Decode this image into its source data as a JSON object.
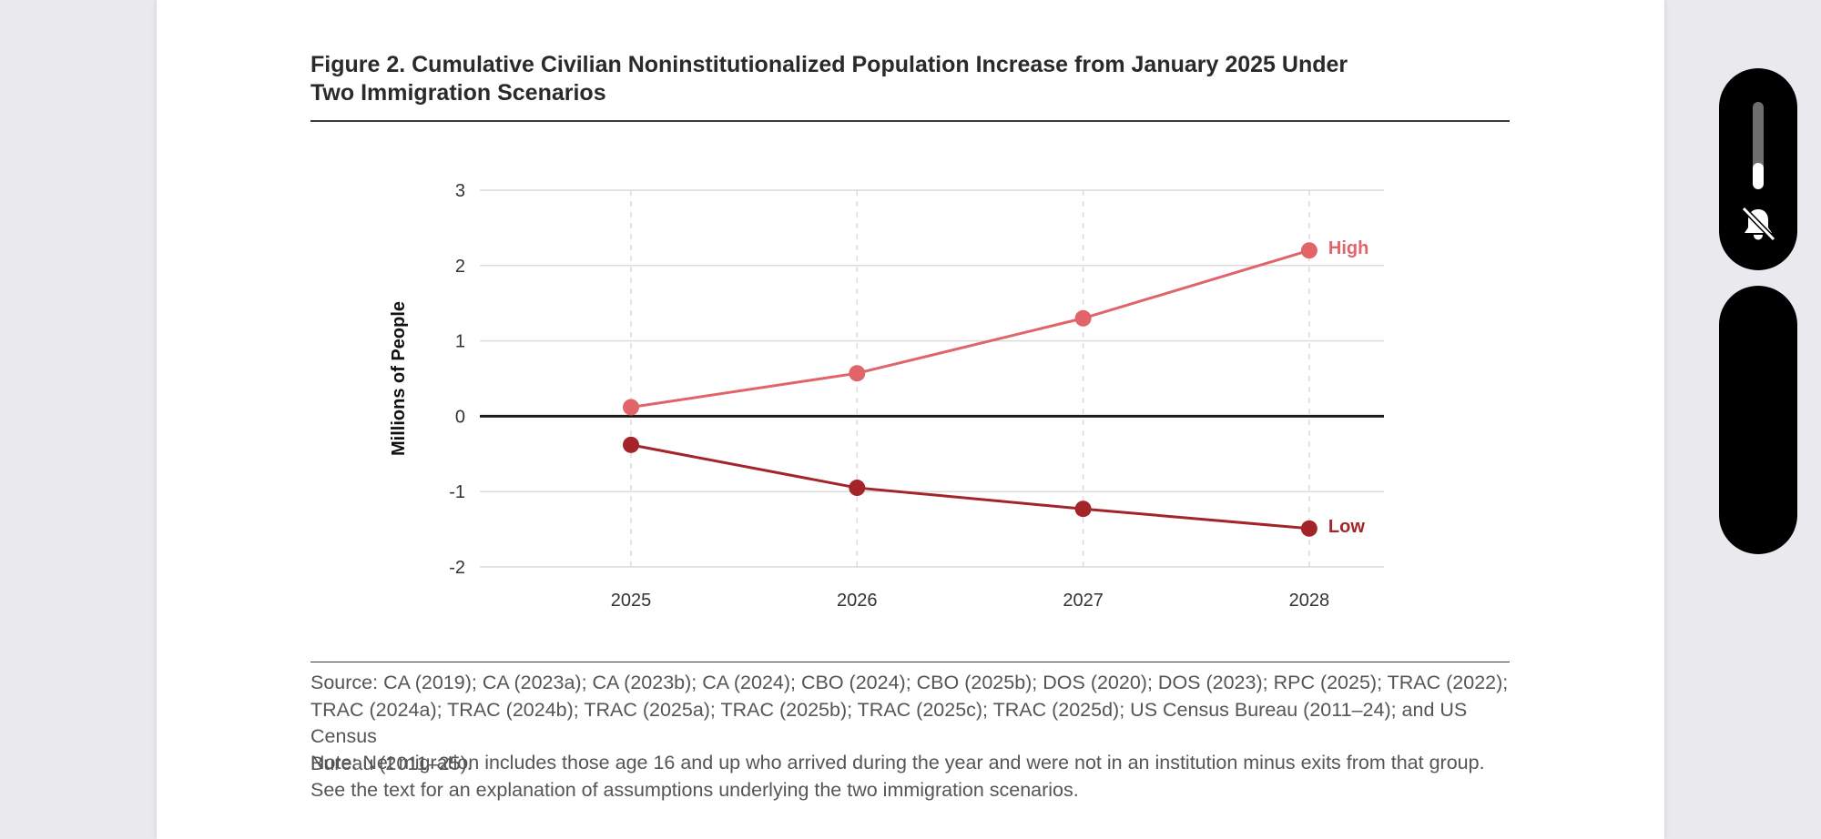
{
  "figure": {
    "title_line1": "Figure 2. Cumulative Civilian Noninstitutionalized Population Increase from January 2025 Under",
    "title_line2": "Two Immigration Scenarios"
  },
  "chart_data": {
    "type": "line",
    "x": [
      2025,
      2026,
      2027,
      2028
    ],
    "series": [
      {
        "name": "High",
        "values": [
          0.12,
          0.57,
          1.3,
          2.2
        ],
        "color": "#e06468"
      },
      {
        "name": "Low",
        "values": [
          -0.38,
          -0.95,
          -1.23,
          -1.49
        ],
        "color": "#a3252a"
      }
    ],
    "title": "",
    "xlabel": "",
    "ylabel": "Millions of People",
    "ylim": [
      -2,
      3
    ],
    "yticks": [
      3,
      2,
      1,
      0,
      -1,
      -2
    ],
    "grid": true,
    "legend": "labels at line ends"
  },
  "footer": {
    "source_line1": "Source: CA (2019); CA (2023a); CA (2023b); CA (2024); CBO (2024); CBO (2025b); DOS (2020); DOS (2023); RPC (2025); TRAC (2022);",
    "source_line2": "TRAC (2024a); TRAC (2024b); TRAC (2025a); TRAC (2025b); TRAC (2025c); TRAC (2025d); US Census Bureau (2011–24); and US Census",
    "source_line3": "Bureau (2011–25).",
    "note_line1": "Note: Net migration includes those age 16 and up who arrived during the year and were not in an institution minus exits from that group.",
    "note_line2": "See the text for an explanation of assumptions underlying the two immigration scenarios."
  },
  "device": {
    "ring_icon": "bell-slash-icon",
    "volume_level": 0.3
  }
}
